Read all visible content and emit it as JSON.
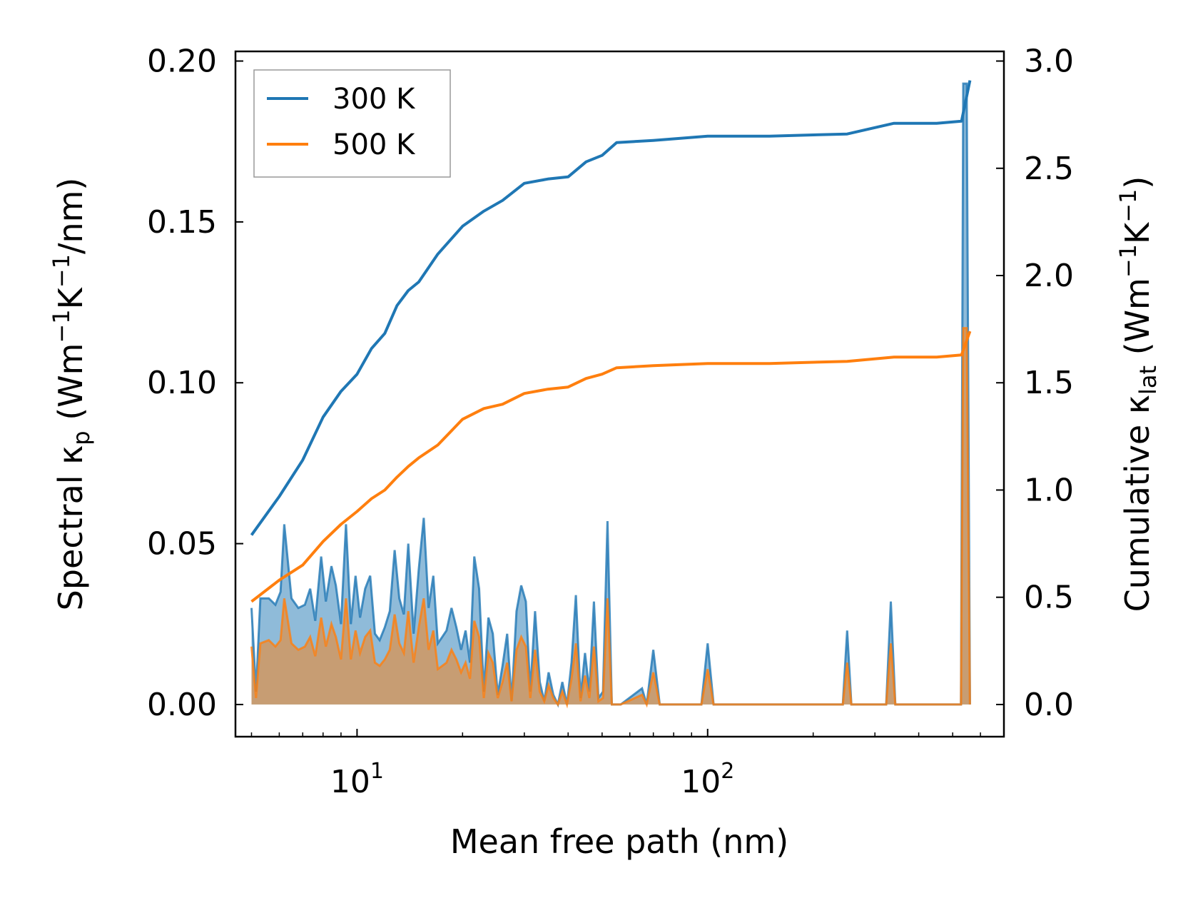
{
  "chart_data": {
    "type": "line",
    "title": "",
    "xlabel": "Mean free path (nm)",
    "xscale": "log",
    "xlim": [
      4.5,
      700
    ],
    "x_ticks": [
      {
        "value": 10,
        "base": "10",
        "exp": "1"
      },
      {
        "value": 100,
        "base": "10",
        "exp": "2"
      }
    ],
    "ylabel_left": {
      "text": "Spectral κ",
      "sub": "p",
      "tail": " (Wm",
      "sup1": "−1",
      "mid": "K",
      "sup2": "−1",
      "end": "/nm)"
    },
    "ylabel_right": {
      "text": "Cumulative κ",
      "sub": "lat",
      "tail": " (Wm",
      "sup1": "−1",
      "mid": "K",
      "sup2": "−1",
      "end": ")"
    },
    "ylim_left": [
      -0.01,
      0.203
    ],
    "ylim_right": [
      -0.15,
      3.045
    ],
    "left_ticks": [
      "0.00",
      "0.05",
      "0.10",
      "0.15",
      "0.20"
    ],
    "right_ticks": [
      "0.0",
      "0.5",
      "1.0",
      "1.5",
      "2.0",
      "2.5",
      "3.0"
    ],
    "legend": {
      "position": "top-left",
      "entries": [
        {
          "label": "300 K",
          "color": "#1f77b4"
        },
        {
          "label": "500 K",
          "color": "#ff7f0e"
        }
      ]
    },
    "cumulative_series": [
      {
        "name": "300 K",
        "color": "#1f77b4",
        "axis": "right",
        "x": [
          5,
          6,
          7,
          8,
          9,
          10,
          11,
          12,
          13,
          14,
          15,
          17,
          20,
          23,
          26,
          30,
          35,
          40,
          45,
          50,
          55,
          70,
          100,
          150,
          250,
          340,
          450,
          530,
          560
        ],
        "y": [
          0.79,
          0.97,
          1.14,
          1.34,
          1.46,
          1.54,
          1.66,
          1.73,
          1.86,
          1.93,
          1.97,
          2.1,
          2.23,
          2.3,
          2.35,
          2.43,
          2.45,
          2.46,
          2.53,
          2.56,
          2.62,
          2.63,
          2.65,
          2.65,
          2.66,
          2.71,
          2.71,
          2.72,
          2.91
        ]
      },
      {
        "name": "500 K",
        "color": "#ff7f0e",
        "axis": "right",
        "x": [
          5,
          6,
          7,
          8,
          9,
          10,
          11,
          12,
          13,
          14,
          15,
          17,
          20,
          23,
          26,
          30,
          35,
          40,
          45,
          50,
          55,
          70,
          100,
          150,
          250,
          340,
          450,
          530,
          560
        ],
        "y": [
          0.48,
          0.58,
          0.65,
          0.76,
          0.84,
          0.9,
          0.96,
          1.0,
          1.06,
          1.11,
          1.15,
          1.21,
          1.33,
          1.38,
          1.4,
          1.45,
          1.47,
          1.48,
          1.52,
          1.54,
          1.57,
          1.58,
          1.59,
          1.59,
          1.6,
          1.62,
          1.62,
          1.63,
          1.74
        ]
      }
    ],
    "spectral_series": [
      {
        "name": "300 K",
        "color": "#1f77b4",
        "axis": "left",
        "x": [
          5,
          5.15,
          5.3,
          5.6,
          5.85,
          6.05,
          6.2,
          6.5,
          6.8,
          7.1,
          7.35,
          7.6,
          7.9,
          8.15,
          8.45,
          8.7,
          9.0,
          9.3,
          9.6,
          9.9,
          10.2,
          10.55,
          10.9,
          11.25,
          11.6,
          12.0,
          12.4,
          12.8,
          13.2,
          13.6,
          14.0,
          14.5,
          15.0,
          15.5,
          16.0,
          16.5,
          17.0,
          17.5,
          18.0,
          18.6,
          19.2,
          19.8,
          20.4,
          21.0,
          21.6,
          22.3,
          23.0,
          23.7,
          24.4,
          25.2,
          26.0,
          26.8,
          27.6,
          28.5,
          29.4,
          30.3,
          31.2,
          32.2,
          33.2,
          34.2,
          35.2,
          36.3,
          37.4,
          38.5,
          39.7,
          40.9,
          42.1,
          43.4,
          44.7,
          46.0,
          47.4,
          48.8,
          50.3,
          51.8,
          53.3,
          54.9,
          56.5,
          65,
          67,
          70,
          73,
          96,
          100,
          104,
          243,
          250,
          257,
          323,
          333,
          343,
          528,
          536,
          548,
          560
        ],
        "y": [
          0.03,
          0.004,
          0.033,
          0.033,
          0.031,
          0.035,
          0.056,
          0.033,
          0.03,
          0.031,
          0.036,
          0.026,
          0.046,
          0.032,
          0.043,
          0.037,
          0.025,
          0.056,
          0.025,
          0.04,
          0.027,
          0.036,
          0.04,
          0.022,
          0.02,
          0.024,
          0.029,
          0.048,
          0.033,
          0.028,
          0.05,
          0.022,
          0.042,
          0.058,
          0.03,
          0.04,
          0.019,
          0.021,
          0.023,
          0.03,
          0.024,
          0.017,
          0.023,
          0.013,
          0.046,
          0.036,
          0.004,
          0.027,
          0.022,
          0.003,
          0.012,
          0.022,
          0.001,
          0.029,
          0.037,
          0.032,
          0.004,
          0.029,
          0.007,
          0.001,
          0.01,
          0.003,
          0.0,
          0.007,
          0.0,
          0.013,
          0.034,
          0.002,
          0.016,
          0.004,
          0.032,
          0.002,
          0.004,
          0.057,
          0.0,
          0.0,
          0.0,
          0.005,
          0.0,
          0.017,
          0.0,
          0.0,
          0.019,
          0.0,
          0.0,
          0.023,
          0.0,
          0.0,
          0.032,
          0.0,
          0.0,
          0.193,
          0.193,
          0.0
        ]
      },
      {
        "name": "500 K",
        "color": "#ff7f0e",
        "axis": "left",
        "x": [
          5,
          5.15,
          5.3,
          5.6,
          5.85,
          6.05,
          6.2,
          6.5,
          6.8,
          7.1,
          7.35,
          7.6,
          7.9,
          8.15,
          8.45,
          8.7,
          9.0,
          9.3,
          9.6,
          9.9,
          10.2,
          10.55,
          10.9,
          11.25,
          11.6,
          12.0,
          12.4,
          12.8,
          13.2,
          13.6,
          14.0,
          14.5,
          15.0,
          15.5,
          16.0,
          16.5,
          17.0,
          17.5,
          18.0,
          18.6,
          19.2,
          19.8,
          20.4,
          21.0,
          21.6,
          22.3,
          23.0,
          23.7,
          24.4,
          25.2,
          26.0,
          26.8,
          27.6,
          28.5,
          29.4,
          30.3,
          31.2,
          32.2,
          33.2,
          34.2,
          35.2,
          36.3,
          37.4,
          38.5,
          39.7,
          40.9,
          42.1,
          43.4,
          44.7,
          46.0,
          47.4,
          48.8,
          50.3,
          51.8,
          53.3,
          54.9,
          56.5,
          65,
          67,
          70,
          73,
          96,
          100,
          104,
          243,
          250,
          257,
          323,
          333,
          343,
          528,
          536,
          548,
          560
        ],
        "y": [
          0.018,
          0.002,
          0.019,
          0.02,
          0.018,
          0.02,
          0.033,
          0.019,
          0.017,
          0.018,
          0.021,
          0.015,
          0.027,
          0.018,
          0.025,
          0.021,
          0.014,
          0.033,
          0.014,
          0.023,
          0.016,
          0.021,
          0.023,
          0.013,
          0.012,
          0.014,
          0.017,
          0.028,
          0.019,
          0.016,
          0.029,
          0.013,
          0.024,
          0.033,
          0.017,
          0.023,
          0.011,
          0.012,
          0.013,
          0.017,
          0.014,
          0.01,
          0.013,
          0.008,
          0.026,
          0.021,
          0.002,
          0.016,
          0.013,
          0.002,
          0.007,
          0.013,
          0.001,
          0.017,
          0.021,
          0.018,
          0.002,
          0.017,
          0.004,
          0.001,
          0.006,
          0.002,
          0.0,
          0.004,
          0.0,
          0.008,
          0.019,
          0.001,
          0.009,
          0.002,
          0.018,
          0.001,
          0.002,
          0.033,
          0.0,
          0.0,
          0.0,
          0.003,
          0.0,
          0.01,
          0.0,
          0.0,
          0.011,
          0.0,
          0.0,
          0.013,
          0.0,
          0.0,
          0.019,
          0.0,
          0.0,
          0.117,
          0.117,
          0.0
        ]
      }
    ]
  }
}
